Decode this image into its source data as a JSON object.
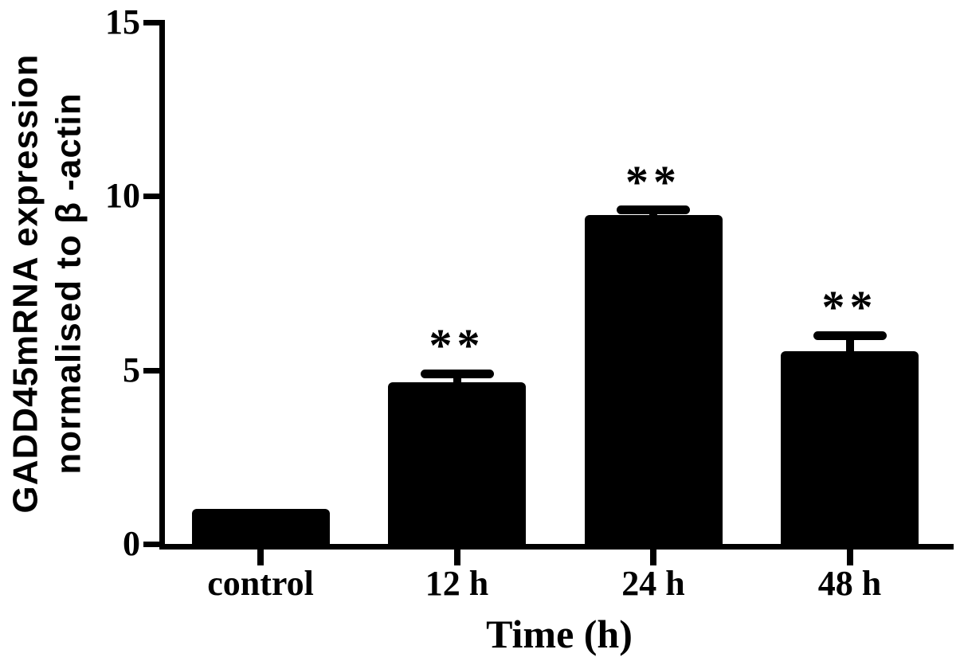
{
  "figure": {
    "background": "#ffffff",
    "ink": "#000000"
  },
  "chart_data": {
    "type": "bar",
    "title": "",
    "categories": [
      "control",
      "12 h",
      "24 h",
      "48 h"
    ],
    "values": [
      1.0,
      4.65,
      9.45,
      5.55
    ],
    "error_upper": [
      0,
      0.25,
      0.15,
      0.45
    ],
    "significance_labels": [
      "",
      "**",
      "**",
      "**"
    ],
    "xlabel": "Time (h)",
    "ylabel_line1": "GADD45mRNA expression",
    "ylabel_line2": "normalised to β -actin",
    "y_ticks": [
      0,
      5,
      10,
      15
    ],
    "ylim": [
      0,
      15
    ],
    "bar_color": "#000000",
    "axis_color": "#000000",
    "grid": false,
    "legend": null
  }
}
